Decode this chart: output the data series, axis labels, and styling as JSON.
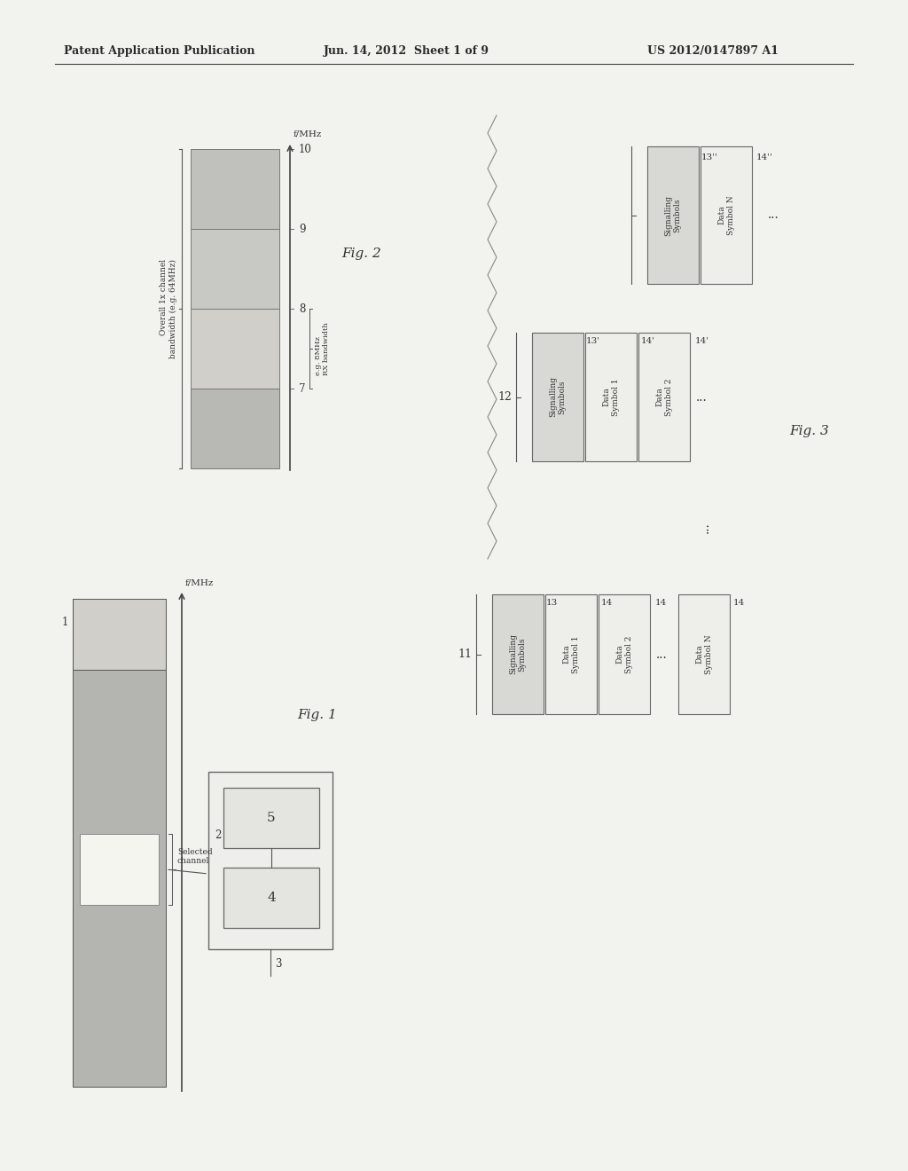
{
  "bg_color": "#f2f2ee",
  "header_text1": "Patent Application Publication",
  "header_text2": "Jun. 14, 2012  Sheet 1 of 9",
  "header_text3": "US 2012/0147897 A1",
  "fig1_label": "Fig. 1",
  "fig2_label": "Fig. 2",
  "fig3_label": "Fig. 3",
  "fig1_bar_color_main": "#b8b8b4",
  "fig1_bar_color_top": "#d0cfc8",
  "fig2_bar_color": "#c8c8c4",
  "fig2_bar_shades": [
    "#c0c0bc",
    "#c8c8c4",
    "#d0cfca",
    "#b8b8b4"
  ],
  "label_f_mhz": "f/MHz",
  "label_f_mhz2": "f/MHz",
  "label_overall": "Overall 1x channel\nbandwidth (e.g. 64MHz)",
  "label_rx_bw": "e.g. 8MHz\nRX bandwidth",
  "label_1": "1",
  "label_2": "2",
  "label_3": "3",
  "label_4": "4",
  "label_5": "5",
  "label_7": "7",
  "label_8": "8",
  "label_9": "9",
  "label_10": "10",
  "label_11": "11",
  "label_12": "12",
  "label_13": "13",
  "label_14": "14",
  "label_13p": "13'",
  "label_14p": "14'",
  "label_13pp": "13''",
  "label_14pp": "14''",
  "label_selected": "Selected\nchannel",
  "sig_symbols_text": "Signalling\nSymbols",
  "data_sym1_text": "Data\nSymbol 1",
  "data_sym2_text": "Data\nSymbol 2",
  "data_symN_text": "Data\nSymbol N"
}
